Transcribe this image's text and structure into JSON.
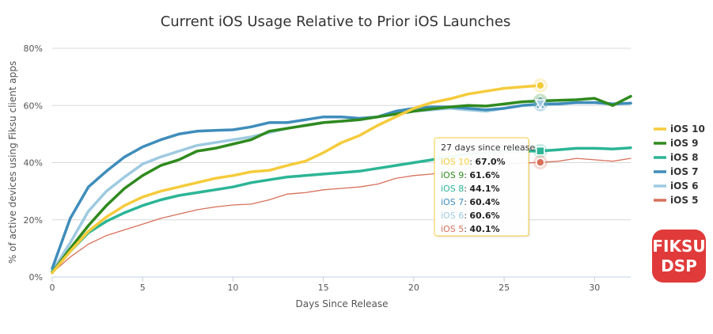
{
  "chart_data": {
    "type": "line",
    "title": "Current iOS Usage Relative to Prior iOS Launches",
    "xlabel": "Days Since Release",
    "ylabel": "% of active devices using Fiksu client apps",
    "xlim": [
      0,
      32
    ],
    "ylim": [
      0,
      80
    ],
    "x_ticks": [
      0,
      5,
      10,
      15,
      20,
      25,
      30
    ],
    "y_ticks": [
      "0%",
      "20%",
      "40%",
      "60%",
      "80%"
    ],
    "y_tick_values": [
      0,
      20,
      40,
      60,
      80
    ],
    "grid": true,
    "legend_position": "right",
    "series": [
      {
        "name": "iOS 10",
        "color": "#f5cb3c",
        "x": [
          0,
          1,
          2,
          3,
          4,
          5,
          6,
          7,
          8,
          9,
          10,
          11,
          12,
          13,
          14,
          15,
          16,
          17,
          18,
          19,
          20,
          21,
          22,
          23,
          24,
          25,
          26,
          27
        ],
        "y": [
          1.5,
          9,
          16,
          21,
          25,
          28,
          30,
          31.5,
          33,
          34.5,
          35.5,
          36.8,
          37.3,
          39,
          40.5,
          43.5,
          47,
          49.5,
          53,
          56,
          59,
          61,
          62.3,
          64,
          65,
          66,
          66.5,
          67.0
        ]
      },
      {
        "name": "iOS 9",
        "color": "#2f8a1e",
        "x": [
          0,
          1,
          2,
          3,
          4,
          5,
          6,
          7,
          8,
          9,
          10,
          11,
          12,
          13,
          14,
          15,
          16,
          17,
          18,
          19,
          20,
          21,
          22,
          23,
          24,
          25,
          26,
          27,
          28,
          29,
          30,
          31,
          32
        ],
        "y": [
          1.5,
          10,
          18,
          25,
          31,
          35.5,
          39,
          41,
          44,
          45,
          46.5,
          48,
          51,
          52,
          53,
          54,
          54.5,
          55,
          56,
          57,
          58,
          58.8,
          59.5,
          60,
          59.8,
          60.5,
          61.3,
          61.6,
          61.8,
          62,
          62.5,
          60,
          63.2
        ]
      },
      {
        "name": "iOS 8",
        "color": "#2cb596",
        "x": [
          0,
          1,
          2,
          3,
          4,
          5,
          6,
          7,
          8,
          9,
          10,
          11,
          12,
          13,
          14,
          15,
          16,
          17,
          18,
          19,
          20,
          21,
          22,
          23,
          24,
          25,
          26,
          27,
          28,
          29,
          30,
          31,
          32
        ],
        "y": [
          2,
          9,
          15.5,
          19.5,
          22.5,
          25,
          27,
          28.5,
          29.5,
          30.5,
          31.5,
          33,
          34,
          35,
          35.5,
          36,
          36.5,
          37,
          38,
          39,
          40,
          41,
          42,
          43,
          43.5,
          44,
          44,
          44.1,
          44.5,
          45,
          45,
          44.8,
          45.2
        ]
      },
      {
        "name": "iOS 7",
        "color": "#3f8dbb",
        "x": [
          0,
          1,
          2,
          3,
          4,
          5,
          6,
          7,
          8,
          9,
          10,
          11,
          12,
          13,
          14,
          15,
          16,
          17,
          18,
          19,
          20,
          21,
          22,
          23,
          24,
          25,
          26,
          27,
          28,
          29,
          30,
          31,
          32
        ],
        "y": [
          3,
          20.5,
          31.5,
          37,
          42,
          45.5,
          48,
          50,
          51,
          51.3,
          51.5,
          52.5,
          54,
          54,
          55,
          56,
          56,
          55.5,
          56,
          58,
          59,
          59.5,
          59.5,
          59,
          58.5,
          59,
          60,
          60.4,
          60.5,
          61,
          61,
          60.5,
          60.8
        ]
      },
      {
        "name": "iOS 6",
        "color": "#9ecae1",
        "x": [
          0,
          1,
          2,
          3,
          4,
          5,
          6,
          7,
          8,
          9,
          10,
          11,
          12,
          13,
          14,
          15,
          16,
          17,
          18,
          19,
          20,
          21,
          22,
          23,
          24,
          25,
          26,
          27,
          28,
          29,
          30,
          31,
          32
        ],
        "y": [
          2,
          12,
          23,
          30,
          35,
          39.5,
          42,
          44,
          46,
          47,
          48,
          49,
          50.5,
          52,
          53,
          54,
          54.5,
          55,
          56,
          57,
          58,
          58.5,
          59,
          58.5,
          58,
          59,
          60,
          60.6,
          60.7,
          61,
          61,
          60.6,
          60.8
        ]
      },
      {
        "name": "iOS 5",
        "color": "#d8705a",
        "x": [
          0,
          1,
          2,
          3,
          4,
          5,
          6,
          7,
          8,
          9,
          10,
          11,
          12,
          13,
          14,
          15,
          16,
          17,
          18,
          19,
          20,
          21,
          22,
          23,
          24,
          25,
          26,
          27,
          28,
          29,
          30,
          31,
          32
        ],
        "y": [
          1.5,
          7,
          11.5,
          14.5,
          16.5,
          18.5,
          20.5,
          22,
          23.5,
          24.5,
          25.2,
          25.5,
          27,
          29,
          29.5,
          30.5,
          31,
          31.5,
          32.5,
          34.5,
          35.5,
          36,
          37,
          38,
          39,
          39.5,
          39.8,
          40.1,
          40.5,
          41.5,
          41,
          40.5,
          41.5
        ]
      }
    ],
    "tooltip": {
      "header": "27 days since release",
      "rows": [
        {
          "label": "iOS 10",
          "value": "67.0%"
        },
        {
          "label": "iOS 9",
          "value": "61.6%"
        },
        {
          "label": "iOS 8",
          "value": "44.1%"
        },
        {
          "label": "iOS 7",
          "value": "60.4%"
        },
        {
          "label": "iOS 6",
          "value": "60.6%"
        },
        {
          "label": "iOS 5",
          "value": "40.1%"
        }
      ]
    }
  },
  "logo": {
    "line1": "FIKSU",
    "line2": "DSP",
    "color": "#e03a3a"
  }
}
